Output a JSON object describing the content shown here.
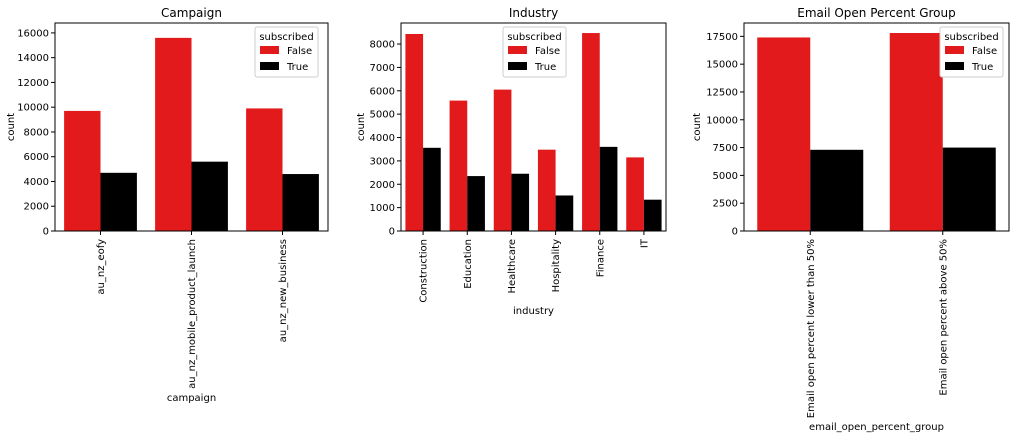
{
  "colors": {
    "false": "#e31a1c",
    "true": "#000000"
  },
  "legend": {
    "title": "subscribed",
    "labels": [
      "False",
      "True"
    ]
  },
  "chart_data": [
    {
      "type": "bar",
      "title": "Campaign",
      "xlabel": "campaign",
      "ylabel": "count",
      "categories": [
        "au_nz_eofy",
        "au_nz_mobile_product_launch",
        "au_nz_new_business"
      ],
      "series": [
        {
          "name": "False",
          "values": [
            9700,
            15600,
            9900
          ]
        },
        {
          "name": "True",
          "values": [
            4700,
            5600,
            4600
          ]
        }
      ],
      "ylim": [
        0,
        16800
      ],
      "yticks": [
        0,
        2000,
        4000,
        6000,
        8000,
        10000,
        12000,
        14000,
        16000
      ],
      "legend_position": "top-right"
    },
    {
      "type": "bar",
      "title": "Industry",
      "xlabel": "industry",
      "ylabel": "count",
      "categories": [
        "Construction",
        "Education",
        "Healthcare",
        "Hospitality",
        "Finance",
        "IT"
      ],
      "series": [
        {
          "name": "False",
          "values": [
            8430,
            5580,
            6050,
            3480,
            8470,
            3150
          ]
        },
        {
          "name": "True",
          "values": [
            3560,
            2350,
            2450,
            1520,
            3600,
            1340
          ]
        }
      ],
      "ylim": [
        0,
        8900
      ],
      "yticks": [
        0,
        1000,
        2000,
        3000,
        4000,
        5000,
        6000,
        7000,
        8000
      ],
      "legend_position": "top-center"
    },
    {
      "type": "bar",
      "title": "Email Open Percent Group",
      "xlabel": "email_open_percent_group",
      "ylabel": "count",
      "categories": [
        "Email open percent lower than 50%",
        "Email open percent above 50%"
      ],
      "series": [
        {
          "name": "False",
          "values": [
            17400,
            17800
          ]
        },
        {
          "name": "True",
          "values": [
            7300,
            7500
          ]
        }
      ],
      "ylim": [
        0,
        18700
      ],
      "yticks": [
        0,
        2500,
        5000,
        7500,
        10000,
        12500,
        15000,
        17500
      ],
      "legend_position": "top-right"
    }
  ]
}
